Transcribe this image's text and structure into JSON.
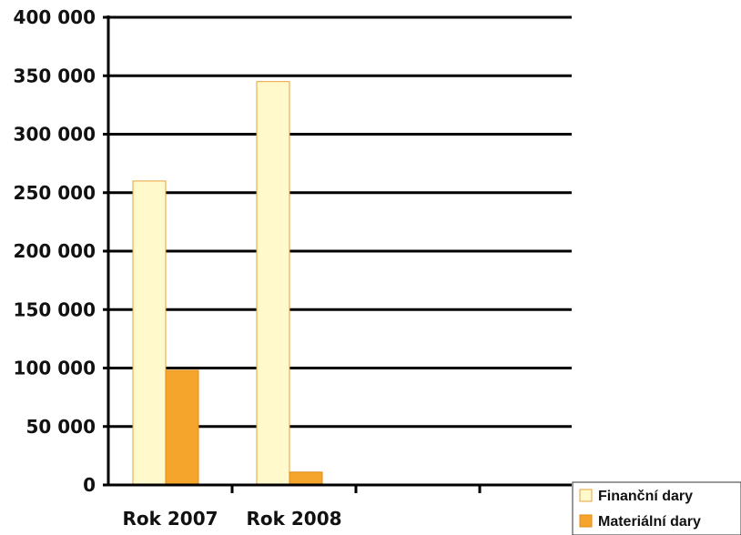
{
  "chart_data": {
    "type": "bar",
    "categories": [
      "Rok 2007",
      "Rok 2008",
      "",
      ""
    ],
    "series": [
      {
        "name": "Finanční dary",
        "values": [
          260000,
          345000,
          null,
          null
        ],
        "color": "#FFF9CC",
        "stroke": "#E8A33A"
      },
      {
        "name": "Materiální dary",
        "values": [
          98000,
          11000,
          null,
          null
        ],
        "color": "#F5A52C",
        "stroke": "#E08A10"
      }
    ],
    "ylim": [
      0,
      400000
    ],
    "yticks": [
      0,
      50000,
      100000,
      150000,
      200000,
      250000,
      300000,
      350000,
      400000
    ],
    "ytick_labels": [
      "0",
      "50 000",
      "100 000",
      "150 000",
      "200 000",
      "250 000",
      "300 000",
      "350 000",
      "400 000"
    ],
    "grid": true,
    "legend_position": "bottom-right",
    "title": "",
    "xlabel": "",
    "ylabel": ""
  }
}
